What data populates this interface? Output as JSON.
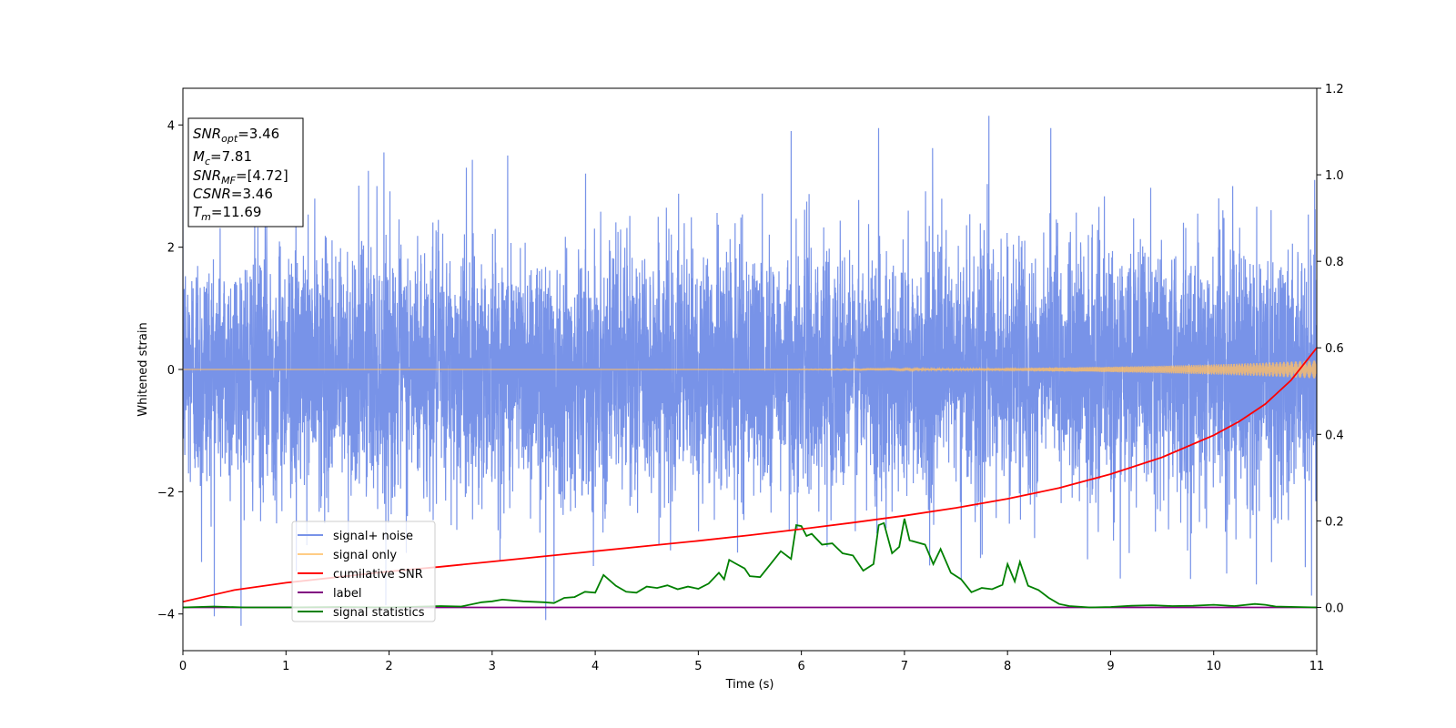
{
  "chart_data": {
    "type": "line",
    "title": "",
    "xlabel": "Time (s)",
    "ylabel": "Whitened strain",
    "xlim": [
      0,
      11
    ],
    "ylim": [
      -4.6,
      4.6
    ],
    "y2lim": [
      -0.1,
      1.2
    ],
    "x_ticks": [
      "0",
      "1",
      "2",
      "3",
      "4",
      "5",
      "6",
      "7",
      "8",
      "9",
      "10",
      "11"
    ],
    "y_ticks": [
      "−4",
      "−2",
      "0",
      "2",
      "4"
    ],
    "y2_ticks": [
      "0.0",
      "0.2",
      "0.4",
      "0.6",
      "0.8",
      "1.0",
      "1.2"
    ],
    "grid": false,
    "legend_position": "lower-left",
    "annotation": {
      "snr_opt": {
        "label": "SNR",
        "sub": "opt",
        "value": "=3.46"
      },
      "mc": {
        "label": "M",
        "sub": "c",
        "value": "=7.81"
      },
      "snr_mf": {
        "label": "SNR",
        "sub": "MF",
        "value": "=[4.72]"
      },
      "csnr": {
        "label": "CSNR",
        "sub": "",
        "value": "=3.46"
      },
      "tm": {
        "label": "T",
        "sub": "m",
        "value": "=11.69"
      }
    },
    "series": [
      {
        "name": "signal+ noise",
        "color": "#7893e8",
        "axis": "left",
        "style": "noise",
        "sigma": 1.0,
        "spikes": [
          {
            "x": 1.8,
            "y": 3.25
          },
          {
            "x": 1.95,
            "y": 3.55
          },
          {
            "x": 2.75,
            "y": 3.3
          },
          {
            "x": 3.15,
            "y": 3.5
          },
          {
            "x": 3.52,
            "y": -4.1
          },
          {
            "x": 3.6,
            "y": -3.8
          },
          {
            "x": 5.9,
            "y": 3.9
          },
          {
            "x": 6.75,
            "y": 3.95
          },
          {
            "x": 7.82,
            "y": 4.15
          },
          {
            "x": 8.42,
            "y": 3.95
          },
          {
            "x": 10.95,
            "y": -3.7
          },
          {
            "x": 10.98,
            "y": 3.1
          },
          {
            "x": 0.18,
            "y": -3.15
          },
          {
            "x": 1.1,
            "y": -3.3
          },
          {
            "x": 7.55,
            "y": -3.45
          }
        ]
      },
      {
        "name": "signal only",
        "color": "#ffbf66",
        "axis": "left",
        "style": "chirp",
        "amplitude_start": 0.0,
        "amplitude_end": 0.15
      },
      {
        "name": "cumilative SNR",
        "color": "#ff0000",
        "axis": "right",
        "x": [
          0,
          0.5,
          1,
          1.5,
          2,
          2.5,
          3,
          3.5,
          4,
          4.5,
          5,
          5.5,
          6,
          6.5,
          7,
          7.5,
          8,
          8.5,
          9,
          9.5,
          10,
          10.25,
          10.5,
          10.75,
          11
        ],
        "values": [
          0.013,
          0.04,
          0.057,
          0.07,
          0.083,
          0.094,
          0.106,
          0.118,
          0.13,
          0.142,
          0.154,
          0.167,
          0.181,
          0.196,
          0.212,
          0.23,
          0.251,
          0.276,
          0.308,
          0.347,
          0.398,
          0.43,
          0.47,
          0.525,
          0.6
        ]
      },
      {
        "name": "label",
        "color": "#800080",
        "axis": "right",
        "x": [
          0,
          11
        ],
        "values": [
          0.0,
          0.0
        ]
      },
      {
        "name": "signal statistics",
        "color": "#008000",
        "axis": "right",
        "x": [
          0,
          0.3,
          0.6,
          1.0,
          1.5,
          2.0,
          2.5,
          2.7,
          2.9,
          3.0,
          3.1,
          3.3,
          3.5,
          3.6,
          3.7,
          3.8,
          3.9,
          4.0,
          4.08,
          4.2,
          4.3,
          4.4,
          4.5,
          4.6,
          4.7,
          4.8,
          4.9,
          5.0,
          5.1,
          5.2,
          5.25,
          5.3,
          5.35,
          5.45,
          5.5,
          5.6,
          5.7,
          5.8,
          5.9,
          5.95,
          6.0,
          6.05,
          6.1,
          6.2,
          6.3,
          6.4,
          6.5,
          6.6,
          6.7,
          6.75,
          6.8,
          6.88,
          6.95,
          7.0,
          7.05,
          7.2,
          7.28,
          7.35,
          7.45,
          7.55,
          7.65,
          7.75,
          7.85,
          7.95,
          8.0,
          8.07,
          8.12,
          8.2,
          8.3,
          8.4,
          8.5,
          8.6,
          8.8,
          9.0,
          9.2,
          9.4,
          9.6,
          9.8,
          10.0,
          10.2,
          10.4,
          10.5,
          10.6,
          10.8,
          11
        ],
        "values": [
          0.0,
          0.002,
          0.0,
          0.0,
          0.001,
          0.0,
          0.003,
          0.002,
          0.012,
          0.014,
          0.018,
          0.014,
          0.012,
          0.01,
          0.022,
          0.024,
          0.036,
          0.034,
          0.075,
          0.05,
          0.036,
          0.034,
          0.048,
          0.045,
          0.051,
          0.042,
          0.048,
          0.043,
          0.055,
          0.08,
          0.065,
          0.11,
          0.103,
          0.09,
          0.072,
          0.07,
          0.1,
          0.13,
          0.112,
          0.19,
          0.188,
          0.165,
          0.17,
          0.145,
          0.148,
          0.125,
          0.12,
          0.085,
          0.1,
          0.19,
          0.195,
          0.125,
          0.14,
          0.205,
          0.155,
          0.145,
          0.1,
          0.135,
          0.08,
          0.065,
          0.035,
          0.045,
          0.042,
          0.052,
          0.1,
          0.06,
          0.105,
          0.05,
          0.04,
          0.022,
          0.008,
          0.003,
          0.0,
          0.001,
          0.004,
          0.005,
          0.003,
          0.004,
          0.006,
          0.003,
          0.008,
          0.006,
          0.002,
          0.001,
          0.0
        ]
      }
    ]
  }
}
